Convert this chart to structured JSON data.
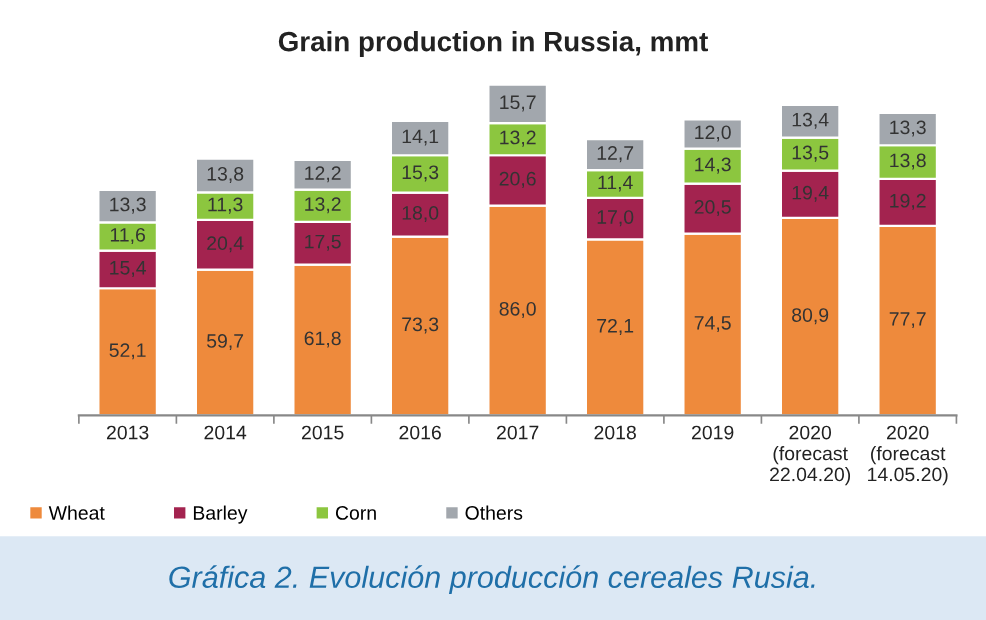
{
  "chart_data": {
    "type": "bar",
    "stacked": true,
    "title": "Grain production in Russia, mmt",
    "categories": [
      "2013",
      "2014",
      "2015",
      "2016",
      "2017",
      "2018",
      "2019",
      "2020\n(forecast\n22.04.20)",
      "2020\n(forecast\n14.05.20)"
    ],
    "series": [
      {
        "name": "Wheat",
        "color": "#ee8a3c",
        "values": [
          52.1,
          59.7,
          61.8,
          73.3,
          86.0,
          72.1,
          74.5,
          80.9,
          77.7
        ],
        "value_labels": [
          "52,1",
          "59,7",
          "61,8",
          "73,3",
          "86,0",
          "72,1",
          "74,5",
          "80,9",
          "77,7"
        ]
      },
      {
        "name": "Barley",
        "color": "#a3234f",
        "values": [
          15.4,
          20.4,
          17.5,
          18.0,
          20.6,
          17.0,
          20.5,
          19.4,
          19.2
        ],
        "value_labels": [
          "15,4",
          "20,4",
          "17,5",
          "18,0",
          "20,6",
          "17,0",
          "20,5",
          "19,4",
          "19,2"
        ]
      },
      {
        "name": "Corn",
        "color": "#8cc63f",
        "values": [
          11.6,
          11.3,
          13.2,
          15.3,
          13.2,
          11.4,
          14.3,
          13.5,
          13.8
        ],
        "value_labels": [
          "11,6",
          "11,3",
          "13,2",
          "15,3",
          "13,2",
          "11,4",
          "14,3",
          "13,5",
          "13,8"
        ]
      },
      {
        "name": "Others",
        "color": "#a2a7ad",
        "values": [
          13.3,
          13.8,
          12.2,
          14.1,
          15.7,
          12.7,
          12.0,
          13.4,
          13.3
        ],
        "value_labels": [
          "13,3",
          "13,8",
          "12,2",
          "14,1",
          "15,7",
          "12,7",
          "12,0",
          "13,4",
          "13,3"
        ]
      }
    ],
    "tick_labels": "x",
    "grid": false,
    "legend": "bottom left",
    "annotations": [
      "Gráfica 2. Evolución producción cereales Rusia."
    ]
  }
}
